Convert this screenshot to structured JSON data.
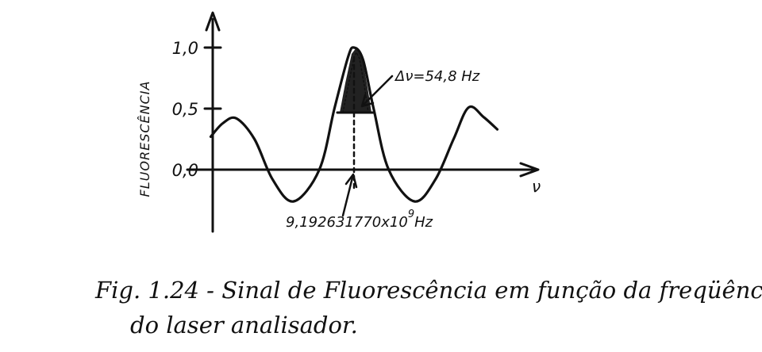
{
  "chart_data": {
    "type": "line",
    "xlabel": "ν",
    "ylabel": "FLUORESCÊNCIA",
    "ylim": [
      -0.45,
      1.25
    ],
    "yticks": [
      0.0,
      0.5,
      1.0
    ],
    "ytick_labels": [
      "0,0",
      "0,5",
      "1,0"
    ],
    "grid": false,
    "x": [
      -9.5,
      -8.7,
      -7.8,
      -6.6,
      -5.4,
      -4.0,
      -2.3,
      -1.3,
      -0.4,
      0.0,
      0.6,
      1.3,
      2.3,
      4.0,
      5.4,
      6.6,
      7.6,
      8.6,
      9.5
    ],
    "y": [
      0.27,
      0.38,
      0.42,
      0.25,
      -0.08,
      -0.26,
      0.0,
      0.5,
      0.92,
      1.0,
      0.9,
      0.5,
      0.0,
      -0.26,
      -0.08,
      0.25,
      0.51,
      0.43,
      0.33
    ],
    "annotations": {
      "linewidth": "Δν=54,8 Hz",
      "center_mantissa": "9,192631770x10",
      "center_exponent": "9",
      "center_unit": "Hz"
    }
  },
  "caption": {
    "line1": "Fig. 1.24 - Sinal de Fluorescência em função da freqüência",
    "line2": "do laser analisador."
  }
}
